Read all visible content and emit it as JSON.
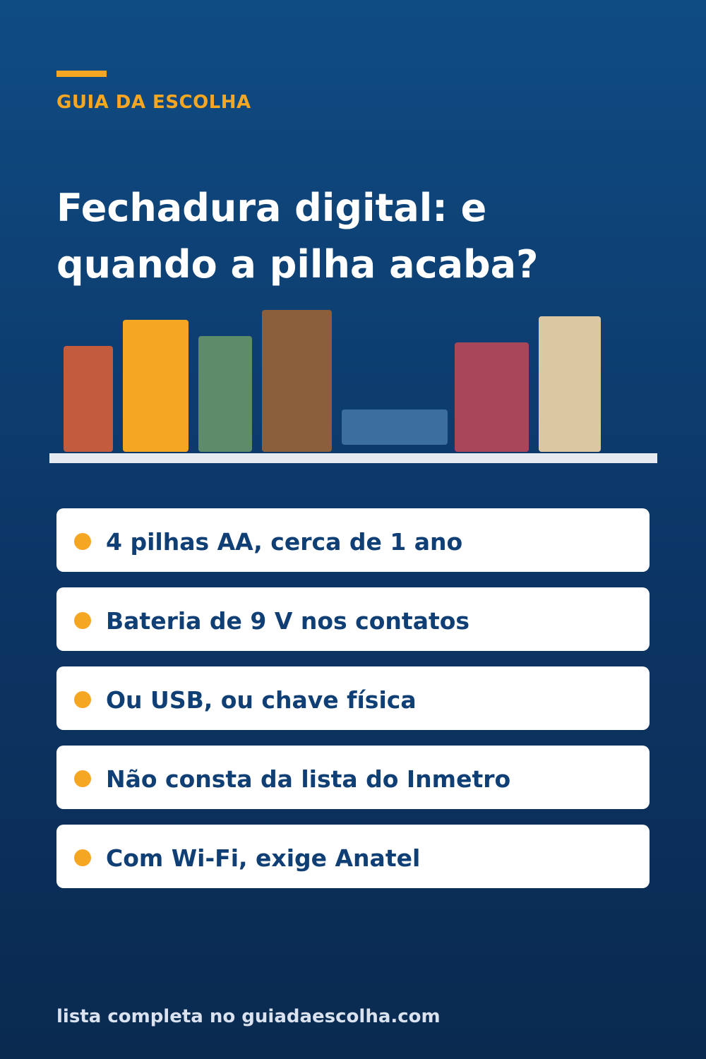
{
  "header": {
    "brand": "GUIA DA ESCOLHA",
    "title_line1": "Fechadura digital: e",
    "title_line2": "quando a pilha acaba?"
  },
  "illustration": {
    "book_colors": [
      "#c35c3c",
      "#f5a623",
      "#5e8c6a",
      "#8b5e3c",
      "#3d6ea0",
      "#a8475a",
      "#dcc7a3"
    ],
    "shelf_color": "#e6ebf2"
  },
  "items": [
    {
      "label": "4 pilhas AA, cerca de 1 ano"
    },
    {
      "label": "Bateria de 9 V nos contatos"
    },
    {
      "label": "Ou USB, ou chave física"
    },
    {
      "label": "Não consta da lista do Inmetro"
    },
    {
      "label": "Com Wi-Fi, exige Anatel"
    }
  ],
  "footer": {
    "text": "lista completa no guiadaescolha.com"
  },
  "colors": {
    "accent": "#f5a623",
    "background_top": "#0f4c83",
    "background_bottom": "#0a2a50",
    "item_text": "#0f3f74"
  }
}
